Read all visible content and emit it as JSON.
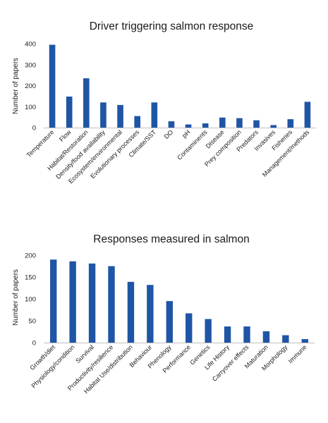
{
  "chart_data": [
    {
      "type": "bar",
      "title": "Driver triggering salmon response",
      "xlabel": "",
      "ylabel": "Number of papers",
      "ylim": [
        0,
        400
      ],
      "yticks": [
        0,
        100,
        200,
        300,
        400
      ],
      "grid": false,
      "bar_color": "#1f55a5",
      "categories": [
        "Temperature",
        "Flow",
        "Habitat/Restoration",
        "Density/food availability",
        "Ecosystem/environmental",
        "Evolutionary processes",
        "Climate/SST",
        "DO",
        "pH",
        "Contaminents",
        "Disease",
        "Prey composition",
        "Predators",
        "Invasives",
        "Fisheries",
        "Management/methods"
      ],
      "values": [
        395,
        148,
        235,
        120,
        108,
        55,
        120,
        30,
        15,
        20,
        48,
        45,
        35,
        12,
        40,
        123
      ]
    },
    {
      "type": "bar",
      "title": "Responses measured in salmon",
      "xlabel": "",
      "ylabel": "Number of papers",
      "ylim": [
        0,
        200
      ],
      "yticks": [
        0,
        50,
        100,
        150,
        200
      ],
      "grid": false,
      "bar_color": "#1f55a5",
      "categories": [
        "Growth/diet",
        "Physiology/condition",
        "Survival",
        "Productivity/resilience",
        "Habitat Use/distribution",
        "Behaviour",
        "Phenology",
        "Performance",
        "Genetics",
        "Life History",
        "Carryover effects",
        "Maturation",
        "Morphology",
        "Immune"
      ],
      "values": [
        190,
        186,
        181,
        175,
        139,
        132,
        95,
        67,
        54,
        37,
        37,
        26,
        17,
        8
      ]
    }
  ]
}
